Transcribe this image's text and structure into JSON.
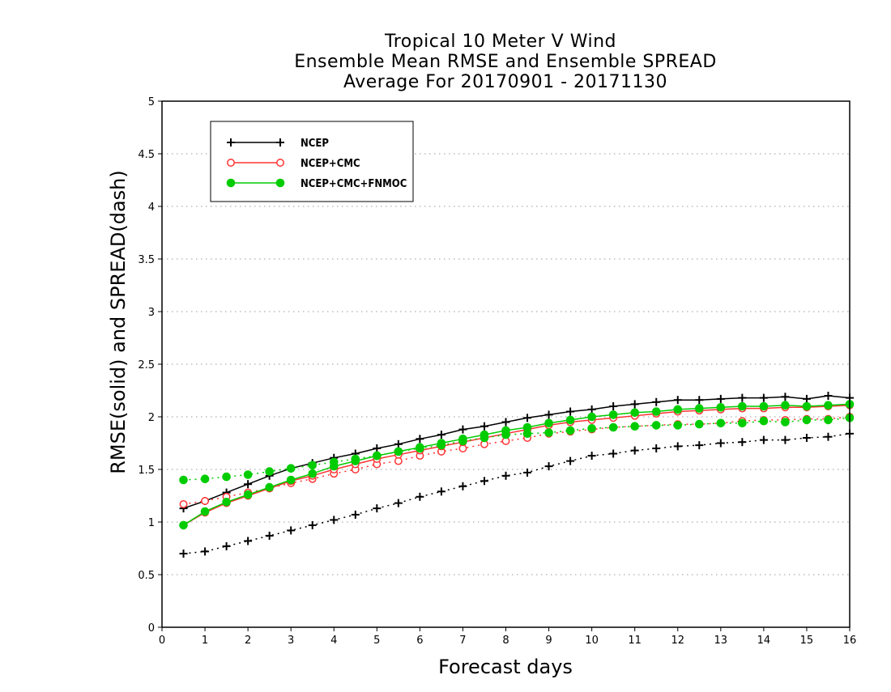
{
  "chart_data": {
    "type": "line",
    "title": [
      "Tropical 10 Meter V Wind",
      "Ensemble Mean RMSE and Ensemble SPREAD",
      "Average For 20170901 - 20171130"
    ],
    "xlabel": "Forecast days",
    "ylabel": "RMSE(solid) and SPREAD(dash)",
    "xlim": [
      0,
      16
    ],
    "ylim": [
      0,
      5
    ],
    "xticks": [
      "0",
      "1",
      "2",
      "3",
      "4",
      "5",
      "6",
      "7",
      "8",
      "9",
      "10",
      "11",
      "12",
      "13",
      "14",
      "15",
      "16"
    ],
    "yticks": [
      "0",
      "0.5",
      "1",
      "1.5",
      "2",
      "2.5",
      "3",
      "3.5",
      "4",
      "4.5",
      "5"
    ],
    "grid": true,
    "legend_position": "top-left",
    "x": [
      0.5,
      1,
      1.5,
      2,
      2.5,
      3,
      3.5,
      4,
      4.5,
      5,
      5.5,
      6,
      6.5,
      7,
      7.5,
      8,
      8.5,
      9,
      9.5,
      10,
      10.5,
      11,
      11.5,
      12,
      12.5,
      13,
      13.5,
      14,
      14.5,
      15,
      15.5,
      16
    ],
    "series": [
      {
        "name": "NCEP",
        "color": "#000000",
        "marker": "plus",
        "rmse": [
          1.13,
          1.2,
          1.28,
          1.36,
          1.44,
          1.51,
          1.56,
          1.61,
          1.65,
          1.7,
          1.74,
          1.79,
          1.83,
          1.88,
          1.91,
          1.95,
          1.99,
          2.02,
          2.05,
          2.07,
          2.1,
          2.12,
          2.14,
          2.16,
          2.16,
          2.17,
          2.18,
          2.18,
          2.19,
          2.17,
          2.2,
          2.18
        ],
        "spread": [
          0.7,
          0.72,
          0.77,
          0.82,
          0.87,
          0.92,
          0.97,
          1.02,
          1.07,
          1.13,
          1.18,
          1.24,
          1.29,
          1.34,
          1.39,
          1.44,
          1.47,
          1.53,
          1.58,
          1.63,
          1.65,
          1.68,
          1.7,
          1.72,
          1.73,
          1.75,
          1.76,
          1.78,
          1.78,
          1.8,
          1.81,
          1.84
        ]
      },
      {
        "name": "NCEP+CMC",
        "color": "#ff3333",
        "marker": "open-circle",
        "rmse": [
          0.97,
          1.09,
          1.18,
          1.25,
          1.32,
          1.39,
          1.44,
          1.5,
          1.55,
          1.6,
          1.64,
          1.68,
          1.72,
          1.76,
          1.8,
          1.84,
          1.88,
          1.92,
          1.95,
          1.97,
          1.99,
          2.01,
          2.03,
          2.05,
          2.06,
          2.07,
          2.08,
          2.08,
          2.09,
          2.09,
          2.1,
          2.11
        ],
        "spread": [
          1.17,
          1.2,
          1.24,
          1.28,
          1.32,
          1.37,
          1.41,
          1.46,
          1.5,
          1.55,
          1.58,
          1.63,
          1.67,
          1.7,
          1.74,
          1.77,
          1.8,
          1.84,
          1.86,
          1.88,
          1.9,
          1.91,
          1.92,
          1.93,
          1.93,
          1.94,
          1.96,
          1.97,
          1.97,
          1.98,
          1.98,
          2.0
        ]
      },
      {
        "name": "NCEP+CMC+FNMOC",
        "color": "#00cc00",
        "marker": "filled-circle",
        "rmse": [
          0.97,
          1.1,
          1.19,
          1.26,
          1.33,
          1.4,
          1.46,
          1.53,
          1.58,
          1.63,
          1.67,
          1.71,
          1.75,
          1.79,
          1.83,
          1.87,
          1.9,
          1.94,
          1.97,
          2.0,
          2.02,
          2.04,
          2.05,
          2.07,
          2.08,
          2.09,
          2.1,
          2.1,
          2.11,
          2.1,
          2.11,
          2.12
        ],
        "spread": [
          1.4,
          1.41,
          1.43,
          1.45,
          1.48,
          1.51,
          1.54,
          1.57,
          1.6,
          1.63,
          1.67,
          1.7,
          1.73,
          1.77,
          1.8,
          1.83,
          1.84,
          1.85,
          1.87,
          1.89,
          1.9,
          1.91,
          1.92,
          1.92,
          1.93,
          1.94,
          1.94,
          1.96,
          1.95,
          1.97,
          1.97,
          1.99
        ]
      }
    ]
  }
}
